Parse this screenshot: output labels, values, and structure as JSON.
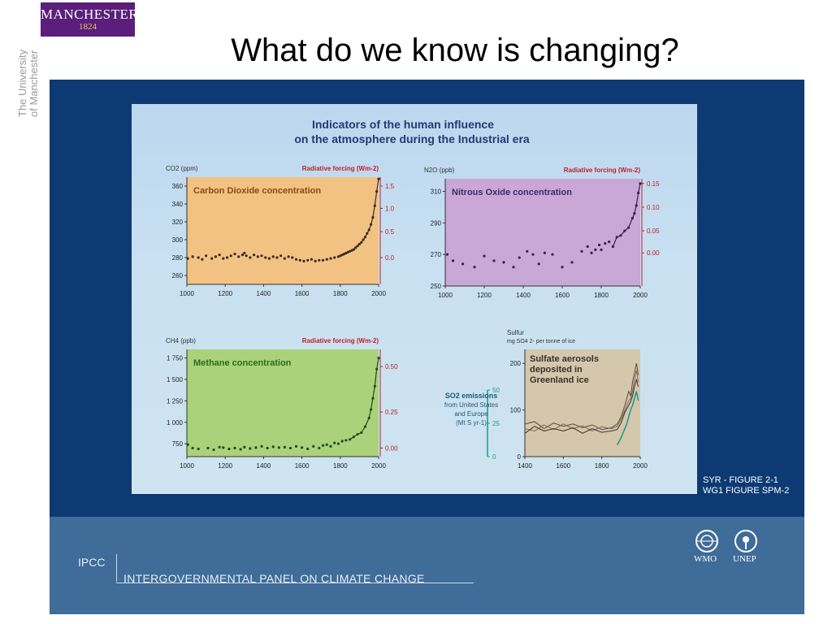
{
  "header": {
    "logo_line1": "MANCHESTER",
    "logo_line2": "1824",
    "university_line1": "The University",
    "university_line2": "of Manchester",
    "slide_title": "What do we know is changing?"
  },
  "figure": {
    "heading_line1": "Indicators of the human influence",
    "heading_line2": "on the atmosphere during the Industrial era",
    "reference_line1": "SYR - FIGURE 2-1",
    "reference_line2": "WG1 FIGURE SPM-2"
  },
  "footer": {
    "ipcc_abbr": "IPCC",
    "ipcc_full": "INTERGOVERNMENTAL PANEL ON CLIMATE CHANGE",
    "wmo": "WMO",
    "unep": "UNEP"
  },
  "chart_data": [
    {
      "type": "scatter",
      "title": "Carbon Dioxide concentration",
      "ylabel": "CO2 (ppm)",
      "ylabel_right": "Radiative forcing (Wm-2)",
      "xlim": [
        1000,
        2000
      ],
      "ylim": [
        250,
        370
      ],
      "x_ticks": [
        1000,
        1200,
        1400,
        1600,
        1800,
        2000
      ],
      "y_ticks": [
        260,
        280,
        300,
        320,
        340,
        360
      ],
      "right_ticks": [
        "1.5",
        "1.0",
        "0.5",
        "0.0"
      ],
      "right_tick_values": [
        360,
        335,
        309,
        280
      ],
      "background": "#f2c283",
      "point_color": "#3a2a22",
      "series": [
        {
          "x": [
            1005,
            1030,
            1060,
            1080,
            1100,
            1130,
            1150,
            1170,
            1190,
            1210,
            1230,
            1250,
            1270,
            1290,
            1300,
            1310,
            1330,
            1350,
            1370,
            1390,
            1410,
            1430,
            1450,
            1470,
            1490,
            1510,
            1530,
            1550,
            1570,
            1590,
            1610,
            1630,
            1650,
            1670,
            1690,
            1710,
            1730,
            1750,
            1770,
            1790,
            1800,
            1810,
            1820,
            1830,
            1840,
            1850,
            1860,
            1870,
            1880,
            1890,
            1900,
            1910,
            1920,
            1930,
            1940,
            1950,
            1960,
            1970,
            1980,
            1990,
            2000
          ],
          "y": [
            279,
            281,
            280,
            278,
            282,
            279,
            281,
            283,
            279,
            280,
            282,
            284,
            281,
            283,
            285,
            282,
            280,
            283,
            281,
            282,
            280,
            279,
            281,
            280,
            282,
            279,
            281,
            280,
            278,
            277,
            276,
            277,
            278,
            276,
            277,
            277,
            278,
            279,
            280,
            281,
            282,
            283,
            284,
            285,
            286,
            287,
            288,
            289,
            291,
            293,
            295,
            297,
            300,
            303,
            307,
            311,
            317,
            325,
            338,
            354,
            368
          ]
        }
      ]
    },
    {
      "type": "scatter",
      "title": "Nitrous Oxide concentration",
      "ylabel": "N2O (ppb)",
      "ylabel_right": "Radiative forcing (Wm-2)",
      "xlim": [
        1000,
        2000
      ],
      "ylim": [
        250,
        318
      ],
      "x_ticks": [
        1000,
        1200,
        1400,
        1600,
        1800,
        2000
      ],
      "y_ticks": [
        250,
        270,
        290,
        310
      ],
      "right_ticks": [
        "0.15",
        "0.10",
        "0.05",
        "0.00"
      ],
      "right_tick_values": [
        315,
        300,
        285,
        271
      ],
      "background": "#c9a7d6",
      "point_color": "#3a1f4a",
      "series": [
        {
          "x": [
            1010,
            1040,
            1090,
            1150,
            1200,
            1250,
            1300,
            1350,
            1380,
            1420,
            1450,
            1480,
            1510,
            1550,
            1600,
            1650,
            1700,
            1730,
            1750,
            1770,
            1790,
            1800,
            1820,
            1840,
            1860,
            1880,
            1900,
            1920,
            1940,
            1960,
            1970,
            1980,
            1990,
            2000
          ],
          "y": [
            270,
            266,
            264,
            262,
            269,
            266,
            265,
            262,
            268,
            272,
            270,
            264,
            271,
            270,
            262,
            265,
            272,
            275,
            271,
            273,
            276,
            273,
            277,
            278,
            275,
            281,
            282,
            285,
            287,
            293,
            296,
            301,
            309,
            315
          ]
        }
      ]
    },
    {
      "type": "scatter",
      "title": "Methane concentration",
      "ylabel": "CH4 (ppb)",
      "ylabel_right": "Radiative forcing (Wm-2)",
      "xlim": [
        1000,
        2000
      ],
      "ylim": [
        600,
        1850
      ],
      "x_ticks": [
        1000,
        1200,
        1400,
        1600,
        1800,
        2000
      ],
      "y_ticks": [
        750,
        1000,
        1250,
        1500,
        1750
      ],
      "y_tick_labels": [
        "750",
        "1 000",
        "1 250",
        "1 500",
        "1 750"
      ],
      "right_ticks": [
        "0.50",
        "0.25",
        "0.00"
      ],
      "right_tick_values": [
        1650,
        1120,
        700
      ],
      "background": "#a9d27a",
      "point_color": "#1f4a1f",
      "series": [
        {
          "x": [
            1005,
            1030,
            1060,
            1110,
            1140,
            1170,
            1190,
            1220,
            1250,
            1280,
            1300,
            1330,
            1360,
            1390,
            1420,
            1450,
            1480,
            1510,
            1540,
            1570,
            1600,
            1630,
            1660,
            1690,
            1710,
            1730,
            1750,
            1770,
            1790,
            1810,
            1830,
            1850,
            1870,
            1890,
            1910,
            1930,
            1950,
            1960,
            1970,
            1980,
            1990,
            2000
          ],
          "y": [
            740,
            700,
            690,
            700,
            680,
            710,
            705,
            690,
            700,
            685,
            710,
            695,
            705,
            720,
            700,
            715,
            705,
            710,
            700,
            720,
            705,
            690,
            720,
            700,
            730,
            740,
            720,
            760,
            750,
            780,
            790,
            800,
            830,
            860,
            880,
            950,
            1050,
            1150,
            1280,
            1420,
            1620,
            1750
          ]
        }
      ]
    },
    {
      "type": "line",
      "title": "Sulfate aerosols deposited in Greenland ice",
      "ylabel": "Sulfur mg SO42- per tonne of ice",
      "ylabel_left_extra": "SO2 emissions from United States and Europe (Mt S yr-1)",
      "xlim": [
        1400,
        2000
      ],
      "ylim": [
        0,
        230
      ],
      "x_ticks": [
        1400,
        1600,
        1800,
        2000
      ],
      "x_tick_labels": [
        "1400",
        "1600",
        "1800",
        "2000"
      ],
      "y_ticks": [
        0,
        100,
        200
      ],
      "left_ticks": [
        "0",
        "25",
        "50"
      ],
      "background": "#d4c7ac",
      "series": [
        {
          "name": "",
          "x": [
            1400,
            1450,
            1500,
            1550,
            1600,
            1650,
            1700,
            1750,
            1800,
            1850,
            1880,
            1900,
            1920,
            1940,
            1950,
            1960,
            1970,
            1980,
            1990
          ],
          "y": [
            70,
            75,
            60,
            72,
            65,
            70,
            62,
            68,
            58,
            62,
            70,
            85,
            110,
            140,
            130,
            160,
            180,
            200,
            175
          ]
        },
        {
          "name": "",
          "x": [
            1400,
            1450,
            1500,
            1550,
            1600,
            1650,
            1700,
            1750,
            1800,
            1850,
            1880,
            1900,
            1920,
            1940,
            1950,
            1960,
            1970,
            1980,
            1990
          ],
          "y": [
            60,
            55,
            68,
            58,
            70,
            60,
            66,
            55,
            64,
            60,
            65,
            80,
            100,
            120,
            125,
            140,
            165,
            185,
            160
          ]
        },
        {
          "name": "",
          "x": [
            1400,
            1450,
            1500,
            1550,
            1600,
            1650,
            1700,
            1750,
            1800,
            1850,
            1880,
            1900,
            1920,
            1940,
            1950,
            1960,
            1970,
            1980,
            1990
          ],
          "y": [
            50,
            65,
            55,
            60,
            55,
            62,
            50,
            60,
            52,
            55,
            58,
            72,
            95,
            110,
            118,
            130,
            150,
            165,
            150
          ]
        },
        {
          "name": "",
          "x": [
            1880,
            1900,
            1910,
            1920,
            1930,
            1940,
            1950,
            1960,
            1970,
            1980,
            1990
          ],
          "y": [
            25,
            40,
            50,
            60,
            70,
            85,
            100,
            110,
            125,
            140,
            120
          ]
        }
      ]
    }
  ]
}
